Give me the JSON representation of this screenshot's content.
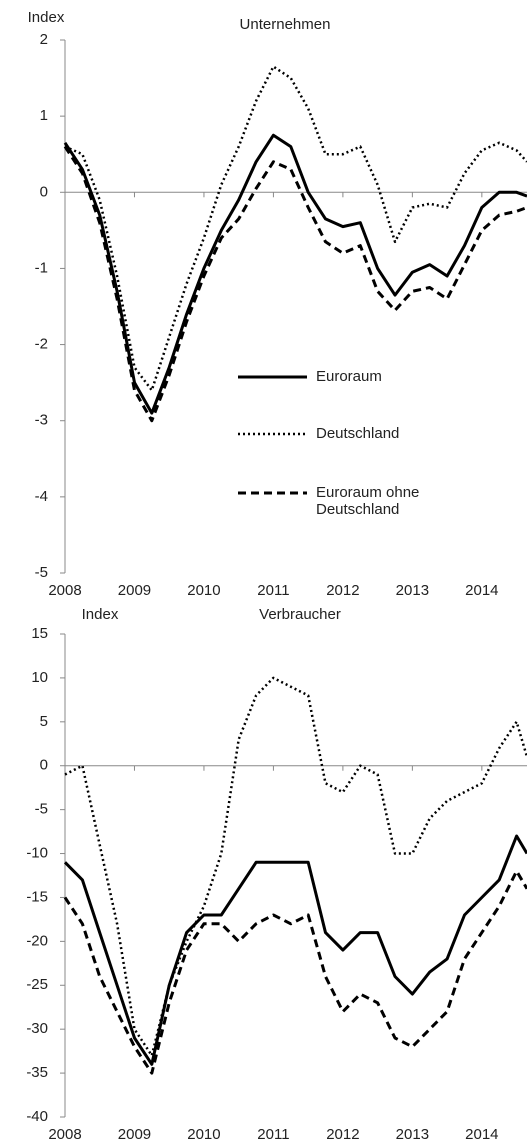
{
  "chart_data": [
    {
      "type": "line",
      "title": "Unternehmen",
      "y_label": "Index",
      "legend": "center",
      "zero_line": true,
      "x": [
        2008,
        2008.25,
        2008.5,
        2008.75,
        2009,
        2009.25,
        2009.5,
        2009.75,
        2010,
        2010.25,
        2010.5,
        2010.75,
        2011,
        2011.25,
        2011.5,
        2011.75,
        2012,
        2012.25,
        2012.5,
        2012.75,
        2013,
        2013.25,
        2013.5,
        2013.75,
        2014,
        2014.25,
        2014.5,
        2014.65
      ],
      "xlim": [
        2008,
        2014.65
      ],
      "xticks": [
        2008,
        2009,
        2010,
        2011,
        2012,
        2013,
        2014
      ],
      "ylim": [
        -5,
        2
      ],
      "yticks": [
        -5,
        -4,
        -3,
        -2,
        -1,
        0,
        1,
        2
      ],
      "series": [
        {
          "name": "Euroraum",
          "color": "#000000",
          "style": "solid",
          "values": [
            0.65,
            0.3,
            -0.3,
            -1.3,
            -2.5,
            -2.9,
            -2.3,
            -1.6,
            -1.0,
            -0.5,
            -0.1,
            0.4,
            0.75,
            0.6,
            0.0,
            -0.35,
            -0.45,
            -0.4,
            -1.0,
            -1.35,
            -1.05,
            -0.95,
            -1.1,
            -0.7,
            -0.2,
            0.0,
            0.0,
            -0.05
          ]
        },
        {
          "name": "Deutschland",
          "color": "#000000",
          "style": "dotted",
          "values": [
            0.6,
            0.5,
            -0.1,
            -1.1,
            -2.3,
            -2.6,
            -1.9,
            -1.2,
            -0.6,
            0.1,
            0.6,
            1.2,
            1.65,
            1.5,
            1.1,
            0.5,
            0.5,
            0.6,
            0.1,
            -0.65,
            -0.2,
            -0.15,
            -0.2,
            0.25,
            0.55,
            0.65,
            0.55,
            0.4
          ]
        },
        {
          "name": "Euroraum ohne Deutschland",
          "color": "#000000",
          "style": "dashed",
          "values": [
            0.6,
            0.25,
            -0.4,
            -1.4,
            -2.6,
            -3.0,
            -2.4,
            -1.7,
            -1.1,
            -0.6,
            -0.35,
            0.05,
            0.4,
            0.3,
            -0.2,
            -0.65,
            -0.8,
            -0.7,
            -1.3,
            -1.55,
            -1.3,
            -1.25,
            -1.4,
            -0.95,
            -0.5,
            -0.3,
            -0.25,
            -0.2
          ]
        }
      ]
    },
    {
      "type": "line",
      "title": "Verbraucher",
      "y_label": "Index",
      "zero_line": true,
      "x": [
        2008,
        2008.25,
        2008.5,
        2008.75,
        2009,
        2009.25,
        2009.5,
        2009.75,
        2010,
        2010.25,
        2010.5,
        2010.75,
        2011,
        2011.25,
        2011.5,
        2011.75,
        2012,
        2012.25,
        2012.5,
        2012.75,
        2013,
        2013.25,
        2013.5,
        2013.75,
        2014,
        2014.25,
        2014.5,
        2014.65
      ],
      "xlim": [
        2008,
        2014.65
      ],
      "xticks": [
        2008,
        2009,
        2010,
        2011,
        2012,
        2013,
        2014
      ],
      "ylim": [
        -40,
        15
      ],
      "yticks": [
        -40,
        -35,
        -30,
        -25,
        -20,
        -15,
        -10,
        -5,
        0,
        5,
        10,
        15
      ],
      "series": [
        {
          "name": "Euroraum",
          "color": "#000000",
          "style": "solid",
          "values": [
            -11,
            -13,
            -19,
            -25,
            -31,
            -34,
            -25,
            -19,
            -17,
            -17,
            -14,
            -11,
            -11,
            -11,
            -11,
            -19,
            -21,
            -19,
            -19,
            -24,
            -26,
            -23.5,
            -22,
            -17,
            -15,
            -13,
            -8,
            -10
          ]
        },
        {
          "name": "Deutschland",
          "color": "#000000",
          "style": "dotted",
          "values": [
            -1,
            0,
            -9,
            -18,
            -30,
            -33,
            -25,
            -20,
            -16,
            -10,
            3,
            8,
            10,
            9,
            8,
            -2,
            -3,
            0,
            -1,
            -10,
            -10,
            -6,
            -4,
            -3,
            -2,
            2,
            5,
            1
          ]
        },
        {
          "name": "Euroraum ohne Deutschland",
          "color": "#000000",
          "style": "dashed",
          "values": [
            -15,
            -18,
            -24,
            -28,
            -32,
            -35,
            -27,
            -21,
            -18,
            -18,
            -20,
            -18,
            -17,
            -18,
            -17,
            -24,
            -28,
            -26,
            -27,
            -31,
            -32,
            -30,
            -28,
            -22,
            -19,
            -16,
            -12,
            -14
          ]
        }
      ]
    }
  ]
}
